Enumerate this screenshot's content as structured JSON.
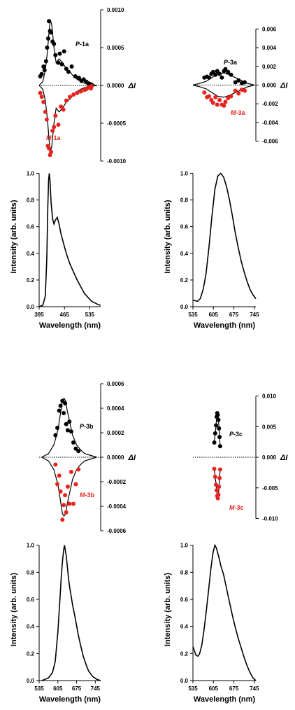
{
  "chart_data": [
    {
      "id": "1",
      "type": "line",
      "cpl": {
        "ylim": [
          -0.001,
          0.001
        ],
        "yticks": [
          -0.001,
          -0.0005,
          0.0,
          0.0005,
          0.001
        ],
        "ytick_labels": [
          "-0.0010",
          "-0.0005",
          "0.0000",
          "0.0005",
          "0.0010"
        ],
        "ylabel": "ΔI",
        "p_label": "P-1a",
        "m_label": "M-1a",
        "p_curve": {
          "x": [
            395,
            405,
            412,
            418,
            422,
            426,
            430,
            436,
            442,
            450,
            460,
            470,
            480,
            490,
            500,
            510,
            520,
            530,
            540,
            555
          ],
          "y": [
            0.0,
            5e-05,
            0.0002,
            0.00045,
            0.0007,
            0.00087,
            0.0008,
            0.0005,
            0.0003,
            0.00035,
            0.0003,
            0.00022,
            0.00018,
            0.00012,
            8e-05,
            5e-05,
            3e-05,
            2e-05,
            1e-05,
            0.0
          ]
        },
        "m_curve": {
          "x": [
            395,
            405,
            412,
            418,
            422,
            426,
            430,
            436,
            442,
            450,
            460,
            470,
            480,
            490,
            500,
            510,
            520,
            530,
            540,
            555
          ],
          "y": [
            0.0,
            -5e-05,
            -0.0002,
            -0.00045,
            -0.0007,
            -0.00089,
            -0.0008,
            -0.0005,
            -0.0003,
            -0.00035,
            -0.0003,
            -0.00022,
            -0.00018,
            -0.00012,
            -8e-05,
            -5e-05,
            -3e-05,
            -2e-05,
            -1e-05,
            0.0
          ]
        },
        "p_points": {
          "x": [
            398,
            402,
            407,
            410,
            414,
            417,
            420,
            422,
            425,
            428,
            432,
            436,
            440,
            448,
            452,
            458,
            464,
            470,
            476,
            485,
            495,
            505,
            512,
            518,
            525,
            530,
            535,
            540
          ],
          "y": [
            0.00012,
            0.00015,
            0.00025,
            0.0002,
            0.00032,
            0.0005,
            0.00062,
            0.00085,
            0.00072,
            0.0007,
            0.00058,
            0.00055,
            0.0004,
            0.0003,
            0.00042,
            0.00028,
            0.00045,
            0.00022,
            0.00018,
            0.00025,
            0.00012,
            0.0001,
            6e-05,
            8e-05,
            5e-05,
            3e-05,
            2e-05,
            1e-05
          ]
        },
        "m_points": {
          "x": [
            398,
            402,
            407,
            412,
            416,
            419,
            422,
            425,
            428,
            432,
            436,
            440,
            448,
            455,
            462,
            470,
            480,
            490,
            500,
            510,
            520,
            525,
            530,
            535,
            538,
            540
          ],
          "y": [
            -0.0001,
            -0.00015,
            -0.00022,
            -0.00035,
            -0.00045,
            -0.0008,
            -0.00083,
            -0.00092,
            -0.00088,
            -0.0006,
            -0.00055,
            -0.0004,
            -0.00052,
            -0.00028,
            -0.00032,
            -0.0002,
            -0.00015,
            -0.00012,
            -0.0001,
            -8e-05,
            -6e-05,
            -5e-05,
            -3e-05,
            -2e-05,
            -4e-05,
            -1e-05
          ]
        }
      },
      "pl": {
        "xlim": [
          395,
          565
        ],
        "xticks": [
          395,
          465,
          535
        ],
        "ylim": [
          0,
          1.05
        ],
        "yticks": [
          0,
          0.2,
          0.4,
          0.6,
          0.8,
          1.0
        ],
        "ytick_labels": [
          "0.0",
          "0.2",
          "0.4",
          "0.6",
          "0.8",
          "1.0"
        ],
        "xlabel": "Wavelength (nm)",
        "ylabel": "Intensity (arb. units)",
        "curve": {
          "x": [
            395,
            405,
            412,
            416,
            419,
            421,
            423,
            425,
            428,
            432,
            436,
            440,
            445,
            450,
            455,
            460,
            470,
            480,
            490,
            500,
            510,
            520,
            530,
            540,
            555,
            565
          ],
          "y": [
            0.0,
            0.01,
            0.08,
            0.35,
            0.75,
            0.95,
            1.0,
            0.95,
            0.78,
            0.66,
            0.62,
            0.65,
            0.67,
            0.62,
            0.55,
            0.5,
            0.4,
            0.32,
            0.26,
            0.2,
            0.15,
            0.1,
            0.07,
            0.04,
            0.02,
            0.01
          ]
        }
      }
    },
    {
      "id": "2",
      "type": "line",
      "cpl": {
        "ylim": [
          -0.007,
          0.007
        ],
        "yticks": [
          -0.006,
          -0.004,
          -0.002,
          0.0,
          0.002,
          0.004,
          0.006
        ],
        "ytick_labels": [
          "-0.006",
          "-0.004",
          "-0.002",
          "0.000",
          "0.002",
          "0.004",
          "0.006"
        ],
        "ylabel": "ΔI",
        "p_label": "P-3a",
        "m_label": "M-3a",
        "p_curve": {
          "x": [
            535,
            560,
            580,
            600,
            620,
            640,
            660,
            680,
            700,
            720,
            745
          ],
          "y": [
            0.0,
            0.0002,
            0.0004,
            0.0008,
            0.0012,
            0.0013,
            0.0011,
            0.0008,
            0.0005,
            0.0002,
            0.0
          ]
        },
        "m_curve": {
          "x": [
            535,
            560,
            580,
            600,
            620,
            640,
            660,
            680,
            700,
            720,
            745
          ],
          "y": [
            0.0,
            -0.0002,
            -0.0004,
            -0.0008,
            -0.0012,
            -0.0013,
            -0.0011,
            -0.0008,
            -0.0005,
            -0.0002,
            0.0
          ]
        },
        "p_points": {
          "x": [
            574,
            583,
            590,
            598,
            604,
            612,
            618,
            626,
            634,
            641,
            646,
            655,
            665,
            680,
            691,
            702,
            712
          ],
          "y": [
            0.0008,
            0.0009,
            0.0008,
            0.0012,
            0.0014,
            0.0011,
            0.0015,
            0.0012,
            0.0008,
            0.0015,
            0.0017,
            0.0014,
            0.0011,
            0.0003,
            0.0005,
            0.0002,
            0.0003
          ]
        },
        "m_points": {
          "x": [
            574,
            583,
            590,
            598,
            604,
            612,
            618,
            626,
            634,
            641,
            646,
            655,
            665,
            680,
            691,
            702,
            712
          ],
          "y": [
            -0.0008,
            -0.0013,
            -0.0012,
            -0.0016,
            -0.0019,
            -0.0013,
            -0.0021,
            -0.0016,
            -0.0021,
            -0.0022,
            -0.0018,
            -0.0014,
            -0.0012,
            -0.0006,
            -0.0009,
            -0.0005,
            -0.0006
          ]
        }
      },
      "pl": {
        "xlim": [
          535,
          750
        ],
        "xticks": [
          535,
          605,
          675,
          745
        ],
        "ylim": [
          0,
          1.05
        ],
        "yticks": [
          0,
          0.2,
          0.4,
          0.6,
          0.8,
          1.0
        ],
        "ytick_labels": [
          "0.0",
          "0.2",
          "0.4",
          "0.6",
          "0.8",
          "1.0"
        ],
        "xlabel": "Wavelength (nm)",
        "ylabel": "Intensity (arb. units)",
        "curve": {
          "x": [
            535,
            550,
            560,
            570,
            580,
            590,
            600,
            610,
            620,
            630,
            640,
            650,
            660,
            670,
            680,
            690,
            700,
            710,
            720,
            730,
            740,
            750
          ],
          "y": [
            0.05,
            0.04,
            0.06,
            0.13,
            0.25,
            0.45,
            0.68,
            0.88,
            0.98,
            1.0,
            0.97,
            0.9,
            0.8,
            0.68,
            0.55,
            0.44,
            0.34,
            0.26,
            0.19,
            0.13,
            0.09,
            0.06
          ]
        }
      }
    },
    {
      "id": "3",
      "type": "line",
      "cpl": {
        "ylim": [
          -0.0006,
          0.0006
        ],
        "yticks": [
          -0.0006,
          -0.0004,
          -0.0002,
          0.0,
          0.0002,
          0.0004,
          0.0006
        ],
        "ytick_labels": [
          "-0.0006",
          "-0.0004",
          "-0.0002",
          "0.0000",
          "0.0002",
          "0.0004",
          "0.0006"
        ],
        "ylabel": "ΔI",
        "p_label": "P-3b",
        "m_label": "M-3b",
        "p_curve": {
          "x": [
            545,
            570,
            590,
            605,
            615,
            622,
            628,
            634,
            640,
            650,
            660,
            675,
            690,
            705,
            720,
            750
          ],
          "y": [
            0.0,
            3e-05,
            0.0001,
            0.00022,
            0.00036,
            0.00046,
            0.00048,
            0.00046,
            0.00038,
            0.00028,
            0.00018,
            0.0001,
            6e-05,
            3e-05,
            2e-05,
            0.0
          ]
        },
        "m_curve": {
          "x": [
            545,
            570,
            590,
            605,
            615,
            622,
            628,
            634,
            640,
            650,
            660,
            675,
            690,
            705,
            720,
            750
          ],
          "y": [
            0.0,
            -3e-05,
            -0.0001,
            -0.00022,
            -0.00036,
            -0.00046,
            -0.00048,
            -0.00046,
            -0.00038,
            -0.00028,
            -0.00018,
            -0.0001,
            -6e-05,
            -3e-05,
            -2e-05,
            0.0
          ]
        },
        "p_points": {
          "x": [
            596,
            603,
            610,
            615,
            622,
            627,
            632,
            636,
            642,
            648,
            655,
            663,
            672,
            682
          ],
          "y": [
            0.00018,
            0.00024,
            0.00038,
            0.00042,
            0.00046,
            0.00036,
            0.00044,
            0.00027,
            0.00022,
            0.00029,
            0.00021,
            0.00012,
            7e-05,
            5e-05
          ]
        },
        "m_points": {
          "x": [
            596,
            603,
            610,
            615,
            622,
            627,
            632,
            636,
            642,
            648,
            655,
            663,
            672,
            682
          ],
          "y": [
            -6e-05,
            -0.00022,
            -0.00015,
            -0.00028,
            -0.00051,
            -0.00039,
            -0.00031,
            -0.00045,
            -0.00024,
            -0.00038,
            -0.00012,
            -0.00038,
            -0.00022,
            -0.0001
          ]
        }
      },
      "pl": {
        "xlim": [
          535,
          765
        ],
        "xticks": [
          535,
          605,
          675,
          745
        ],
        "ylim": [
          0,
          1.05
        ],
        "yticks": [
          0,
          0.2,
          0.4,
          0.6,
          0.8,
          1.0
        ],
        "ytick_labels": [
          "0.0",
          "0.2",
          "0.4",
          "0.6",
          "0.8",
          "1.0"
        ],
        "xlabel": "Wavelength (nm)",
        "ylabel": "Intensity (arb. units)",
        "curve": {
          "x": [
            545,
            570,
            585,
            595,
            605,
            612,
            618,
            623,
            627,
            630,
            633,
            636,
            640,
            645,
            650,
            660,
            670,
            680,
            690,
            700,
            710,
            720,
            735,
            750,
            765
          ],
          "y": [
            0.0,
            0.02,
            0.06,
            0.14,
            0.36,
            0.58,
            0.78,
            0.9,
            0.97,
            1.0,
            0.96,
            0.93,
            0.85,
            0.75,
            0.68,
            0.56,
            0.46,
            0.35,
            0.26,
            0.18,
            0.12,
            0.07,
            0.03,
            0.01,
            0.0
          ]
        }
      }
    },
    {
      "id": "4",
      "type": "line",
      "cpl": {
        "ylim": [
          -0.012,
          0.012
        ],
        "yticks": [
          -0.01,
          -0.005,
          0.0,
          0.005,
          0.01
        ],
        "ytick_labels": [
          "-0.010",
          "-0.005",
          "0.000",
          "0.005",
          "0.010"
        ],
        "ylabel": "ΔI",
        "p_label": "P-3c",
        "m_label": "M-3c",
        "p_curve": {
          "x": [
            608,
            611,
            614,
            616,
            618,
            620,
            622,
            624,
            626,
            628
          ],
          "y": [
            0.0025,
            0.0038,
            0.0052,
            0.0065,
            0.0072,
            0.0071,
            0.0062,
            0.0048,
            0.0034,
            0.0018
          ]
        },
        "m_curve": {
          "x": [
            608,
            611,
            614,
            616,
            618,
            620,
            622,
            624,
            626,
            628
          ],
          "y": [
            -0.0019,
            -0.0032,
            -0.0044,
            -0.0054,
            -0.0063,
            -0.0067,
            -0.0062,
            -0.0048,
            -0.0034,
            -0.002
          ]
        },
        "p_points": {
          "x": [
            608,
            611,
            614,
            616,
            618,
            620,
            622,
            624,
            626,
            628
          ],
          "y": [
            0.0024,
            0.0039,
            0.0052,
            0.0066,
            0.0072,
            0.0069,
            0.0061,
            0.0047,
            0.0033,
            0.0018
          ]
        },
        "m_points": {
          "x": [
            608,
            611,
            614,
            616,
            618,
            620,
            622,
            624,
            626,
            628
          ],
          "y": [
            -0.0019,
            -0.0032,
            -0.0045,
            -0.0054,
            -0.0063,
            -0.0067,
            -0.0061,
            -0.0048,
            -0.0034,
            -0.002
          ]
        }
      },
      "pl": {
        "xlim": [
          535,
          750
        ],
        "xticks": [
          535,
          605,
          675,
          745
        ],
        "ylim": [
          0,
          1.05
        ],
        "yticks": [
          0,
          0.2,
          0.4,
          0.6,
          0.8,
          1.0
        ],
        "ytick_labels": [
          "0.0",
          "0.2",
          "0.4",
          "0.6",
          "0.8",
          "1.0"
        ],
        "xlabel": "Wavelength (nm)",
        "ylabel": "Intensity (arb. units)",
        "curve": {
          "x": [
            535,
            540,
            545,
            552,
            558,
            565,
            572,
            580,
            588,
            596,
            604,
            610,
            615,
            620,
            625,
            630,
            640,
            650,
            660,
            670,
            680,
            690,
            700,
            710,
            720,
            730,
            740,
            750
          ],
          "y": [
            0.25,
            0.22,
            0.19,
            0.18,
            0.2,
            0.26,
            0.36,
            0.5,
            0.66,
            0.82,
            0.95,
            1.0,
            0.98,
            0.94,
            0.9,
            0.85,
            0.78,
            0.68,
            0.58,
            0.48,
            0.39,
            0.31,
            0.24,
            0.17,
            0.11,
            0.06,
            0.02,
            0.0
          ]
        }
      }
    }
  ]
}
